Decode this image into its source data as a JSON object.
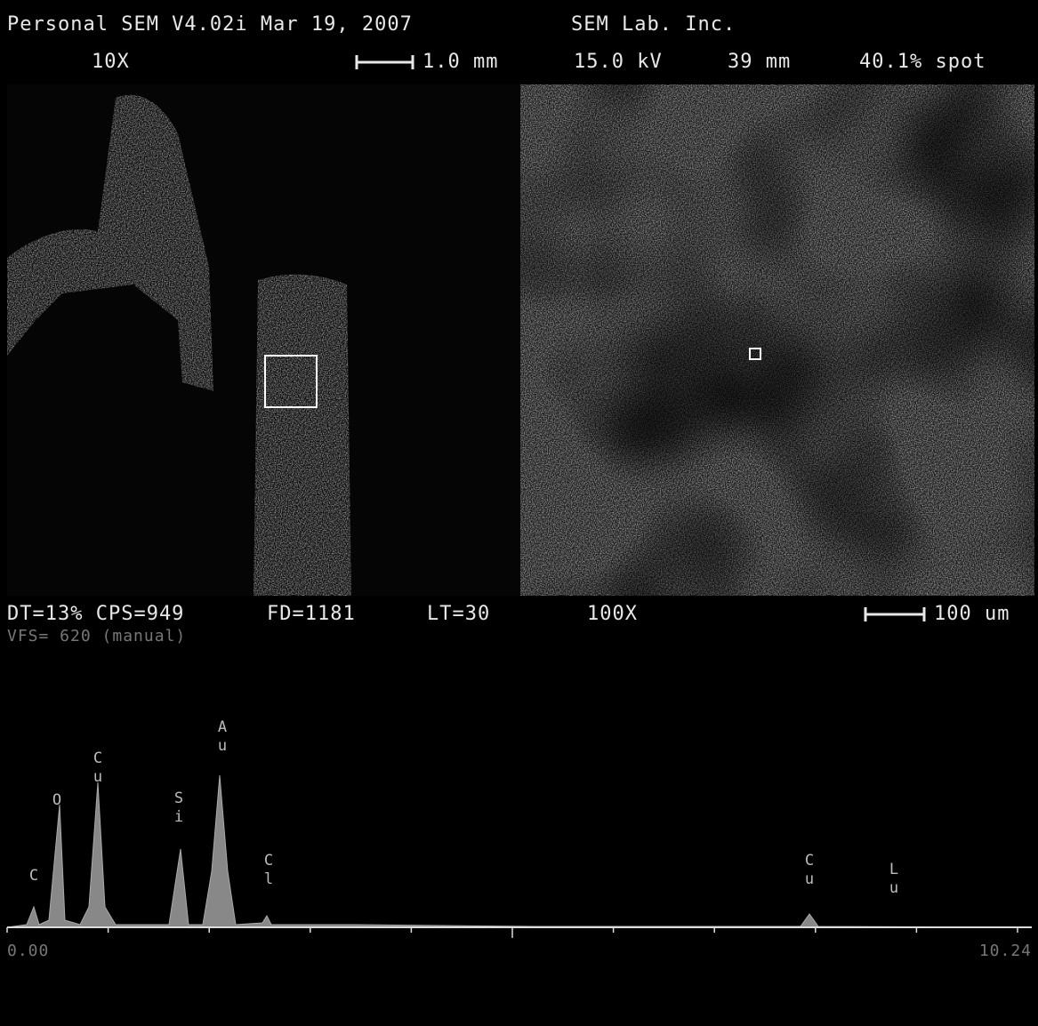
{
  "header": {
    "title": "Personal SEM V4.02i Mar 19, 2007",
    "company": "SEM Lab. Inc."
  },
  "top_status": {
    "magnification": "10X",
    "scale": "1.0 mm",
    "voltage": "15.0 kV",
    "working_distance": "39 mm",
    "spot": "40.1% spot"
  },
  "mid_status": {
    "counts": "DT=13% CPS=949",
    "fd": "FD=1181",
    "lt": "LT=30",
    "magnification": "100X",
    "scale": "100 um",
    "vfs": "VFS= 620 (manual)"
  },
  "spectrum": {
    "peaks": [
      "C",
      "O",
      "Cu",
      "Si",
      "Au",
      "Cl",
      "Cu",
      "Lu"
    ],
    "axis_start": "0.00",
    "axis_end": "10.24"
  }
}
